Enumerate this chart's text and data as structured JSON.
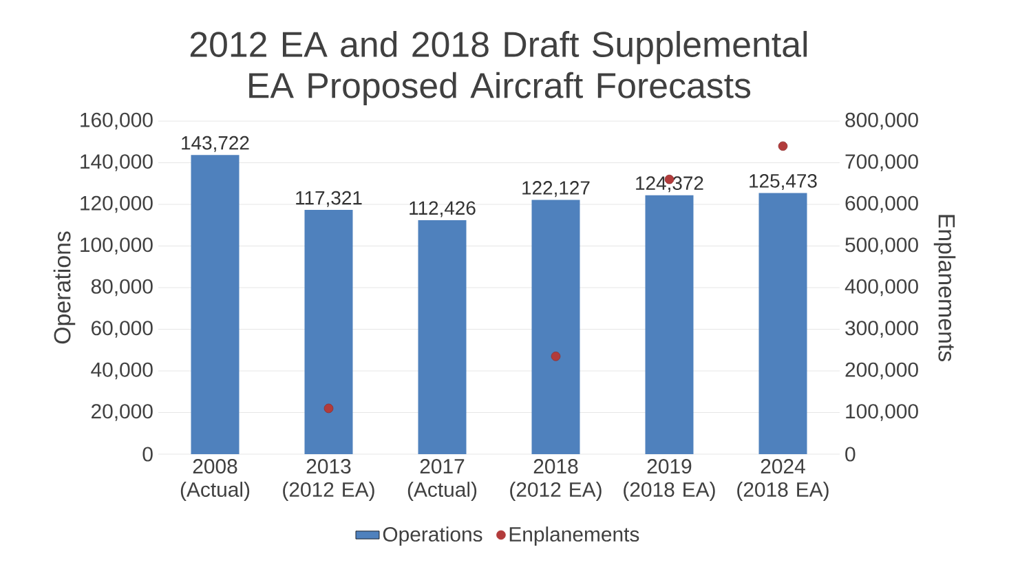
{
  "chart_data": {
    "type": "bar",
    "title": "2012 EA and 2018 Draft Supplemental EA Proposed Aircraft Forecasts",
    "ylabel": "Operations",
    "y2label": "Enplanements",
    "categories": [
      "2008 (Actual)",
      "2013 (2012 EA)",
      "2017 (Actual)",
      "2018 (2012 EA)",
      "2019 (2018 EA)",
      "2024 (2018 EA)"
    ],
    "series": [
      {
        "name": "Operations",
        "color": "#4f81bd",
        "values": [
          143722,
          117321,
          112426,
          122127,
          124372,
          125473
        ],
        "value_labels": [
          "143,722",
          "117,321",
          "112,426",
          "122,127",
          "124,372",
          "125,473"
        ]
      },
      {
        "name": "Enplanements",
        "type": "scatter",
        "axis": "y2",
        "color": "#b23b3b",
        "values": [
          null,
          110000,
          null,
          235000,
          660000,
          740000
        ]
      }
    ],
    "ylim": [
      0,
      160000
    ],
    "yticks": [
      {
        "value": 0,
        "label": "0"
      },
      {
        "value": 20000,
        "label": "20,000"
      },
      {
        "value": 40000,
        "label": "40,000"
      },
      {
        "value": 60000,
        "label": "60,000"
      },
      {
        "value": 80000,
        "label": "80,000"
      },
      {
        "value": 100000,
        "label": "100,000"
      },
      {
        "value": 120000,
        "label": "120,000"
      },
      {
        "value": 140000,
        "label": "140,000"
      },
      {
        "value": 160000,
        "label": "160,000"
      }
    ],
    "y2lim": [
      0,
      800000
    ],
    "y2ticks": [
      {
        "value": 0,
        "label": "0"
      },
      {
        "value": 100000,
        "label": "100,000"
      },
      {
        "value": 200000,
        "label": "200,000"
      },
      {
        "value": 300000,
        "label": "300,000"
      },
      {
        "value": 400000,
        "label": "400,000"
      },
      {
        "value": 500000,
        "label": "500,000"
      },
      {
        "value": 600000,
        "label": "600,000"
      },
      {
        "value": 700000,
        "label": "700,000"
      },
      {
        "value": 800000,
        "label": "800,000"
      }
    ],
    "grid": "y",
    "legend": "bottom"
  }
}
